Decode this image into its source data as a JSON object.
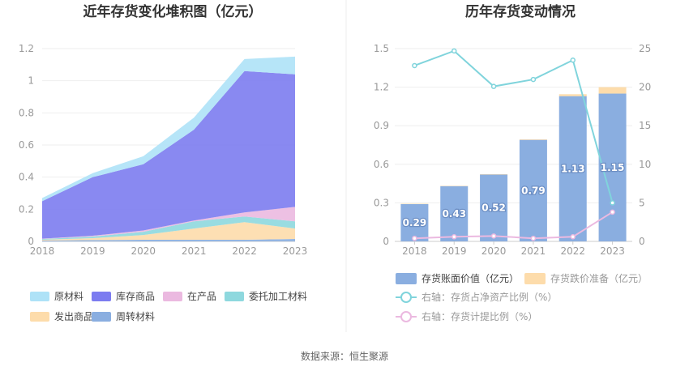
{
  "source_text": "数据来源：恒生聚源",
  "chart_data": [
    {
      "type": "area",
      "title": "近年存货变化堆积图（亿元）",
      "x": [
        "2018",
        "2019",
        "2020",
        "2021",
        "2022",
        "2023"
      ],
      "ylim": [
        0,
        1.2
      ],
      "yticks": [
        "0",
        "0.2",
        "0.4",
        "0.6",
        "0.8",
        "1",
        "1.2"
      ],
      "stacked": true,
      "grid": true,
      "legend_position": "bottom",
      "series": [
        {
          "name": "周转材料",
          "color": "#8aaee0",
          "values": [
            0.005,
            0.008,
            0.01,
            0.01,
            0.01,
            0.015
          ]
        },
        {
          "name": "发出商品",
          "color": "#fddcab",
          "values": [
            0.005,
            0.012,
            0.03,
            0.07,
            0.11,
            0.065
          ]
        },
        {
          "name": "委托加工材料",
          "color": "#8ed8de",
          "values": [
            0.005,
            0.01,
            0.02,
            0.045,
            0.035,
            0.045
          ]
        },
        {
          "name": "在产品",
          "color": "#ebb9e0",
          "values": [
            0.002,
            0.005,
            0.008,
            0.005,
            0.025,
            0.09
          ]
        },
        {
          "name": "库存商品",
          "color": "#7c7cf0",
          "values": [
            0.233,
            0.365,
            0.412,
            0.565,
            0.88,
            0.825
          ]
        },
        {
          "name": "原材料",
          "color": "#aee2f7",
          "values": [
            0.02,
            0.025,
            0.05,
            0.075,
            0.075,
            0.11
          ]
        }
      ],
      "legend_order": [
        "原材料",
        "库存商品",
        "在产品",
        "委托加工材料",
        "发出商品",
        "周转材料"
      ]
    },
    {
      "type": "bar",
      "title": "历年存货变动情况",
      "x": [
        "2018",
        "2019",
        "2020",
        "2021",
        "2022",
        "2023"
      ],
      "ylim": [
        0,
        1.5
      ],
      "yticks": [
        "0",
        "0.3",
        "0.6",
        "0.9",
        "1.2",
        "1.5"
      ],
      "y2lim": [
        0,
        25
      ],
      "y2ticks": [
        "0",
        "5",
        "10",
        "15",
        "20",
        "25"
      ],
      "grid": true,
      "legend_position": "bottom",
      "bar_series": [
        {
          "name": "存货账面价值（亿元）",
          "color": "#8aaee0",
          "values": [
            0.29,
            0.43,
            0.52,
            0.79,
            1.13,
            1.15
          ],
          "labels": [
            "0.29",
            "0.43",
            "0.52",
            "0.79",
            "1.13",
            "1.15"
          ]
        },
        {
          "name": "存货跌价准备（亿元）",
          "color": "#fddcab",
          "values": [
            0.003,
            0.003,
            0.003,
            0.004,
            0.015,
            0.05
          ]
        }
      ],
      "line_series": [
        {
          "name": "右轴：存货占净资产比例（%）",
          "color": "#80d4dc",
          "values": [
            22.8,
            24.7,
            20.1,
            21.0,
            23.5,
            5.0
          ]
        },
        {
          "name": "右轴：存货计提比例（%）",
          "color": "#ebb9e0",
          "values": [
            0.4,
            0.6,
            0.7,
            0.4,
            0.6,
            3.8
          ]
        }
      ]
    }
  ]
}
